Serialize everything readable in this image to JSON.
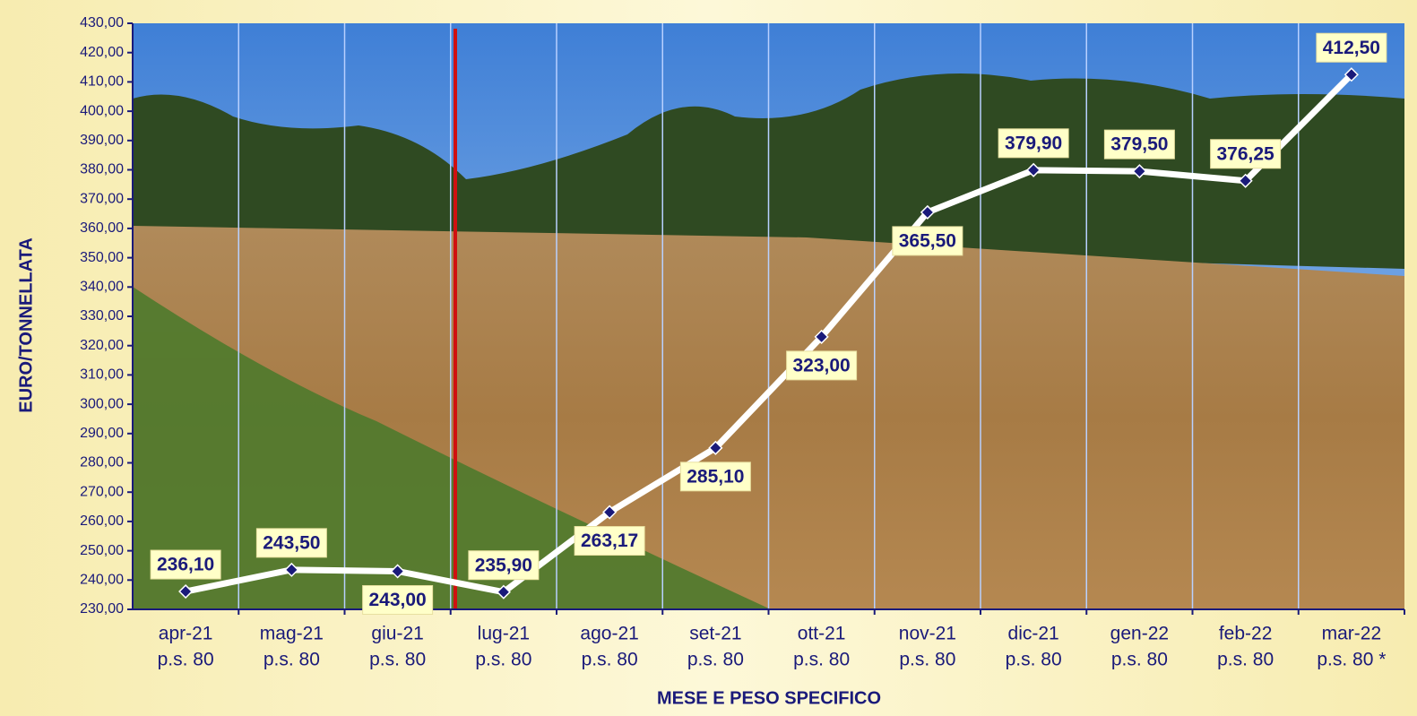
{
  "chart_data": {
    "type": "line",
    "y_axis_label": "EURO/TONNELLATA",
    "x_axis_label": "MESE E PESO SPECIFICO",
    "categories": [
      [
        "apr-21",
        "p.s. 80"
      ],
      [
        "mag-21",
        "p.s. 80"
      ],
      [
        "giu-21",
        "p.s. 80"
      ],
      [
        "lug-21",
        "p.s. 80"
      ],
      [
        "ago-21",
        "p.s. 80"
      ],
      [
        "set-21",
        "p.s. 80"
      ],
      [
        "ott-21",
        "p.s. 80"
      ],
      [
        "nov-21",
        "p.s. 80"
      ],
      [
        "dic-21",
        "p.s. 80"
      ],
      [
        "gen-22",
        "p.s. 80"
      ],
      [
        "feb-22",
        "p.s. 80"
      ],
      [
        "mar-22",
        "p.s. 80 *"
      ]
    ],
    "values": [
      236.1,
      243.5,
      243.0,
      235.9,
      263.17,
      285.1,
      323.0,
      365.5,
      379.9,
      379.5,
      376.25,
      412.5
    ],
    "value_labels": [
      "236,10",
      "243,50",
      "243,00",
      "235,90",
      "263,17",
      "285,10",
      "323,00",
      "365,50",
      "379,90",
      "379,50",
      "376,25",
      "412,50"
    ],
    "color": "#ffffff",
    "marker_color": "#1a1a7a",
    "ylim": [
      230,
      430
    ],
    "yticks": [
      {
        "value": 230,
        "label": "230,00"
      },
      {
        "value": 240,
        "label": "240,00"
      },
      {
        "value": 250,
        "label": "250,00"
      },
      {
        "value": 260,
        "label": "260,00"
      },
      {
        "value": 270,
        "label": "270,00"
      },
      {
        "value": 280,
        "label": "280,00"
      },
      {
        "value": 290,
        "label": "290,00"
      },
      {
        "value": 300,
        "label": "300,00"
      },
      {
        "value": 310,
        "label": "310,00"
      },
      {
        "value": 320,
        "label": "320,00"
      },
      {
        "value": 330,
        "label": "330,00"
      },
      {
        "value": 340,
        "label": "340,00"
      },
      {
        "value": 350,
        "label": "350,00"
      },
      {
        "value": 360,
        "label": "360,00"
      },
      {
        "value": 370,
        "label": "370,00"
      },
      {
        "value": 380,
        "label": "380,00"
      },
      {
        "value": 390,
        "label": "390,00"
      },
      {
        "value": 400,
        "label": "400,00"
      },
      {
        "value": 410,
        "label": "410,00"
      },
      {
        "value": 420,
        "label": "420,00"
      },
      {
        "value": 430,
        "label": "430,00"
      }
    ]
  }
}
